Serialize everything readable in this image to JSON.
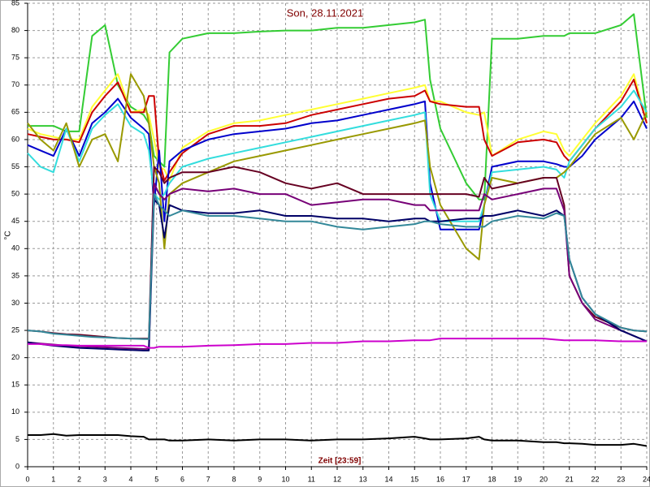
{
  "chart_data": {
    "type": "line",
    "title": "Son, 28.11.2021",
    "xlabel": "Zeit [23:59]",
    "ylabel": "°C",
    "x": [
      0,
      0.5,
      1,
      1.5,
      2,
      2.5,
      3,
      3.5,
      4,
      4.5,
      4.7,
      4.9,
      5.1,
      5.3,
      5.5,
      6,
      7,
      8,
      9,
      10,
      11,
      12,
      13,
      14,
      15,
      15.4,
      15.6,
      16,
      17,
      17.5,
      17.7,
      18,
      19,
      20,
      20.5,
      20.8,
      21,
      21.5,
      22,
      23,
      23.5,
      24
    ],
    "series": [
      {
        "color": "#33cc33",
        "values": [
          62.5,
          62.5,
          62.5,
          61.5,
          61.5,
          79,
          81,
          70,
          66,
          64.5,
          63,
          57,
          56,
          55,
          76,
          78.5,
          79.5,
          79.5,
          79.8,
          80,
          80,
          80.5,
          80.5,
          81,
          81.5,
          82,
          71,
          62,
          52,
          49,
          49,
          78.5,
          78.5,
          79,
          79,
          79,
          79.5,
          79.5,
          79.5,
          81,
          83,
          64
        ]
      },
      {
        "color": "#ffff33",
        "values": [
          62,
          61,
          60.5,
          60,
          60,
          66,
          69,
          72,
          65,
          65.5,
          64.5,
          60,
          55,
          54.5,
          52.5,
          58.5,
          61.5,
          63,
          63.5,
          64.5,
          65.5,
          66.5,
          67.5,
          68.5,
          69.5,
          70,
          67,
          67,
          65,
          64.5,
          65,
          57,
          60,
          61.5,
          61,
          58,
          57,
          60,
          63,
          68,
          72,
          63
        ]
      },
      {
        "color": "#cc0000",
        "values": [
          61,
          60.5,
          60,
          60,
          59.5,
          65,
          68,
          70.5,
          65,
          65,
          68,
          68,
          56,
          52.5,
          54,
          57.5,
          61,
          62.5,
          62.5,
          63,
          64.5,
          65.5,
          66.5,
          67.5,
          68,
          69,
          67,
          66.5,
          66,
          66,
          60,
          57,
          59.5,
          60,
          59.5,
          57,
          56,
          59,
          62,
          67,
          71,
          63
        ]
      },
      {
        "color": "#0000cc",
        "values": [
          59,
          58,
          57,
          62,
          57,
          63,
          65,
          67.5,
          64,
          62,
          61,
          48,
          58,
          45,
          56,
          58,
          60,
          61,
          61.5,
          62,
          63,
          63.5,
          64.5,
          65.5,
          66.5,
          67,
          52,
          43.5,
          43.5,
          43.5,
          48,
          55,
          56,
          56,
          55.5,
          55,
          55,
          57,
          60,
          64,
          67,
          62
        ]
      },
      {
        "color": "#33dddd",
        "values": [
          57.5,
          55,
          54,
          62,
          56,
          62,
          64.5,
          66.5,
          62.5,
          61,
          58,
          50,
          49,
          50,
          52,
          55,
          56.5,
          57.5,
          58.5,
          59.5,
          60.5,
          61.5,
          62.5,
          63.5,
          64.5,
          65,
          50,
          45,
          45,
          45,
          48,
          54,
          54.5,
          55,
          54.5,
          53,
          56,
          59,
          62,
          66,
          69,
          65
        ]
      },
      {
        "color": "#999900",
        "values": [
          63,
          60,
          58,
          63,
          55,
          60,
          61,
          56,
          72,
          68,
          63,
          55,
          52,
          40,
          50,
          52,
          54,
          56,
          57,
          58,
          59,
          60,
          61,
          62,
          63,
          63.5,
          55,
          48,
          40,
          38,
          48,
          53,
          52,
          53,
          53,
          54,
          55,
          58,
          61,
          64,
          60,
          65
        ]
      },
      {
        "color": "#660022",
        "values": [
          25,
          24.8,
          24.5,
          24.3,
          24.2,
          24,
          23.8,
          23.6,
          23.5,
          23.5,
          23.5,
          55,
          54,
          52,
          53,
          54,
          54,
          55,
          54,
          52,
          51,
          52,
          50,
          50,
          50,
          50,
          50,
          50,
          50,
          49.5,
          53,
          51,
          52,
          53,
          53,
          48,
          35,
          30,
          27.5,
          25.5,
          25,
          24.8
        ]
      },
      {
        "color": "#770077",
        "values": [
          22.8,
          22.6,
          22.4,
          22.2,
          22.1,
          22,
          21.9,
          21.8,
          21.7,
          21.6,
          21.6,
          52,
          50,
          49,
          50,
          51,
          50.5,
          51,
          50,
          50,
          48,
          48.5,
          49,
          49,
          48,
          48,
          47,
          47,
          47,
          47,
          50,
          49,
          50,
          51,
          51,
          47,
          35,
          30,
          27,
          25,
          24,
          23
        ]
      },
      {
        "color": "#000066",
        "values": [
          22.8,
          22.5,
          22.2,
          22,
          21.8,
          21.7,
          21.6,
          21.5,
          21.4,
          21.3,
          21.3,
          49,
          48,
          42,
          48,
          47,
          46.5,
          46.5,
          47,
          46,
          46,
          45.5,
          45.5,
          45,
          45.5,
          45.5,
          45,
          45,
          45.5,
          45.5,
          46,
          46,
          47,
          46,
          47,
          46,
          38,
          31,
          28,
          25,
          24,
          23
        ]
      },
      {
        "color": "#338899",
        "values": [
          25,
          24.8,
          24.4,
          24.2,
          24,
          23.8,
          23.7,
          23.6,
          23.5,
          23.4,
          23.4,
          50,
          48,
          47,
          46,
          47,
          46,
          46,
          45.5,
          45,
          45,
          44,
          43.5,
          44,
          44.5,
          45,
          45,
          44.5,
          44,
          44,
          44,
          45,
          46,
          45.5,
          46.5,
          46,
          38,
          31,
          28,
          25.5,
          25,
          24.8
        ]
      },
      {
        "color": "#cc00cc",
        "values": [
          22.5,
          22.5,
          22.3,
          22.3,
          22.2,
          22.2,
          22.2,
          22.2,
          22.2,
          22.2,
          21.8,
          21.8,
          22,
          22,
          22,
          22,
          22.2,
          22.3,
          22.5,
          22.5,
          22.7,
          22.7,
          23,
          23,
          23.2,
          23.2,
          23.2,
          23.5,
          23.5,
          23.5,
          23.5,
          23.5,
          23.5,
          23.5,
          23.3,
          23.2,
          23.2,
          23.2,
          23.2,
          23,
          23,
          23
        ]
      },
      {
        "color": "#000000",
        "values": [
          5.8,
          5.8,
          6,
          5.7,
          5.8,
          5.8,
          5.8,
          5.8,
          5.6,
          5.5,
          5,
          5,
          5,
          5,
          4.8,
          4.8,
          5,
          4.8,
          5,
          5,
          4.8,
          5,
          5,
          5.2,
          5.5,
          5.2,
          5,
          5,
          5.2,
          5.5,
          5,
          4.8,
          4.8,
          4.5,
          4.5,
          4.3,
          4.3,
          4.2,
          4,
          4,
          4.2,
          3.8
        ]
      }
    ],
    "xlim": [
      0,
      24
    ],
    "xticks": [
      0,
      1,
      2,
      3,
      4,
      5,
      6,
      7,
      8,
      9,
      10,
      11,
      12,
      13,
      14,
      15,
      16,
      17,
      18,
      19,
      20,
      21,
      22,
      23,
      24
    ],
    "ylim": [
      0,
      85
    ],
    "yticks": [
      0,
      5,
      10,
      15,
      20,
      25,
      30,
      35,
      40,
      45,
      50,
      55,
      60,
      65,
      70,
      75,
      80,
      85
    ],
    "grid": true
  }
}
